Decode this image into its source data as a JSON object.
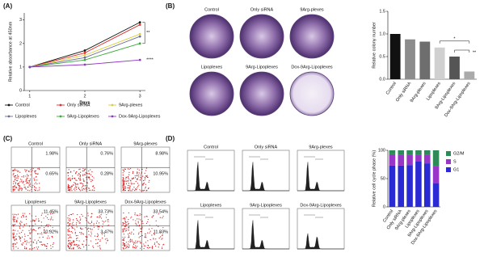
{
  "panel_labels": [
    "(A)",
    "(B)",
    "(C)",
    "(D)"
  ],
  "colony_images": {
    "labels": [
      "Control",
      "Only siRNA",
      "9Arg-plexes",
      "Lipoplexes",
      "9Arg-Lipoplexes",
      "Dox-9Arg-Lipoplexes"
    ]
  },
  "flow_cytometry": {
    "plots": [
      {
        "label": "Control",
        "upper_right": "1.98%",
        "lower_right": "0.65%"
      },
      {
        "label": "Only siRNA",
        "upper_right": "0.76%",
        "lower_right": "0.28%"
      },
      {
        "label": "9Arg-plexes",
        "upper_right": "8.98%",
        "lower_right": "10.95%"
      },
      {
        "label": "Lipoplexes",
        "upper_right": "11.45%",
        "lower_right": "10.92%"
      },
      {
        "label": "9Arg-Lipoplexes",
        "upper_right": "33.73%",
        "lower_right": "3.47%"
      },
      {
        "label": "Dox-9Arg-Lipoplexes",
        "upper_right": "33.54%",
        "lower_right": "11.83%"
      }
    ]
  },
  "cell_cycle_histograms": {
    "labels": [
      "Control",
      "Only siRNA",
      "9Arg-plexes",
      "Lipoplexes",
      "9Arg-Lipoplexes",
      "Dox-9Arg-Lipoplexes"
    ]
  },
  "chart_data": [
    {
      "type": "line",
      "x_label": "Days",
      "y_label": "Relative absorbance at 450nm",
      "x": [
        1,
        2,
        3
      ],
      "xlim": [
        0.9,
        3.1
      ],
      "xticks": [
        1,
        2,
        3
      ],
      "ylim": [
        0,
        3.3
      ],
      "yticks": [
        0,
        1,
        2,
        3
      ],
      "series": [
        {
          "name": "Control",
          "color": "#111111",
          "values": [
            1,
            1.7,
            2.9
          ]
        },
        {
          "name": "Only siRNA",
          "color": "#e03030",
          "values": [
            1,
            1.6,
            2.8
          ]
        },
        {
          "name": "9Arg-plexes",
          "color": "#d8cf3a",
          "values": [
            1,
            1.5,
            2.4
          ]
        },
        {
          "name": "Lipoplexes",
          "color": "#6a6a9a",
          "values": [
            1,
            1.4,
            2.3
          ]
        },
        {
          "name": "9Arg-Lipoplexes",
          "color": "#3aa83a",
          "values": [
            1,
            1.3,
            2.0
          ]
        },
        {
          "name": "Dox-9Arg-Lipoplexes",
          "color": "#9038c0",
          "values": [
            1,
            1.1,
            1.3
          ]
        }
      ],
      "annotations": [
        "**",
        "****"
      ]
    },
    {
      "type": "bar",
      "y_label": "Relative colony number",
      "categories": [
        "Control",
        "Only siRNA",
        "9Arg-plexes",
        "Lipoplexes",
        "9Arg-Lipoplexes",
        "Dox-9Arg-Lipoplexes"
      ],
      "values": [
        1.0,
        0.88,
        0.83,
        0.7,
        0.5,
        0.17
      ],
      "colors": [
        "#111111",
        "#8c8c8c",
        "#6e6e6e",
        "#d0d0d0",
        "#555555",
        "#aaaaaa"
      ],
      "ylim": [
        0,
        1.5
      ],
      "yticks": [
        {
          "value": 0,
          "label": "0.0"
        },
        0.5,
        {
          "value": 1,
          "label": "1.0"
        },
        1.5
      ],
      "annotations": [
        "*",
        "**"
      ]
    },
    {
      "type": "stacked_bar",
      "y_label": "Relative cell cycle phase (%)",
      "categories": [
        "Control",
        "Only siRNA",
        "9Arg-plexes",
        "Lipoplexes",
        "9Arg-Lipoplexes",
        "Dox-9Arg-Lipoplexes"
      ],
      "series": [
        {
          "name": "G1",
          "color": "#2b2bd6",
          "values": [
            73,
            73,
            74,
            80,
            77,
            42
          ]
        },
        {
          "name": "S",
          "color": "#9a35c9",
          "values": [
            20,
            19,
            18,
            12,
            15,
            30
          ]
        },
        {
          "name": "G2/M",
          "color": "#2e8b57",
          "values": [
            7,
            8,
            8,
            8,
            8,
            28
          ]
        }
      ],
      "ylim": [
        0,
        100
      ],
      "yticks": [
        0,
        50,
        100
      ]
    }
  ]
}
